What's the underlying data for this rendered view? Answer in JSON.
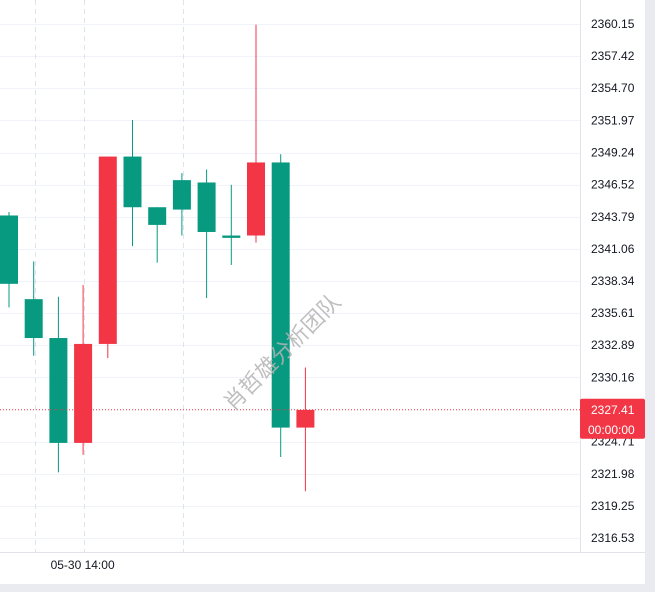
{
  "chart_data": {
    "type": "candlestick",
    "title": "",
    "xlabel": "",
    "ylabel": "",
    "y_ticks": [
      2360.15,
      2357.42,
      2354.7,
      2351.97,
      2349.24,
      2346.52,
      2343.79,
      2341.06,
      2338.34,
      2335.61,
      2332.89,
      2330.16,
      2324.71,
      2321.98,
      2319.25,
      2316.53
    ],
    "y_tick_labels": [
      "2360.15",
      "2357.42",
      "2354.70",
      "2351.97",
      "2349.24",
      "2346.52",
      "2343.79",
      "2341.06",
      "2338.34",
      "2335.61",
      "2332.89",
      "2330.16",
      "2324.71",
      "2321.98",
      "2319.25",
      "2316.53"
    ],
    "ylim": [
      2315.3,
      2362.9
    ],
    "x_tick_labels": [
      {
        "index": 3,
        "label": "05-30 14:00"
      }
    ],
    "candles": [
      {
        "index": 0,
        "open": 2338.1,
        "high": 2344.2,
        "low": 2336.1,
        "close": 2343.9
      },
      {
        "index": 1,
        "open": 2333.5,
        "high": 2340.0,
        "low": 2332.0,
        "close": 2336.8
      },
      {
        "index": 2,
        "open": 2324.6,
        "high": 2337.0,
        "low": 2322.1,
        "close": 2333.5
      },
      {
        "index": 3,
        "open": 2333.0,
        "high": 2338.0,
        "low": 2323.6,
        "close": 2324.6
      },
      {
        "index": 4,
        "open": 2348.9,
        "high": 2348.9,
        "low": 2331.8,
        "close": 2333.0
      },
      {
        "index": 5,
        "open": 2344.6,
        "high": 2352.0,
        "low": 2341.3,
        "close": 2348.9
      },
      {
        "index": 6,
        "open": 2343.1,
        "high": 2344.6,
        "low": 2339.9,
        "close": 2344.6
      },
      {
        "index": 7,
        "open": 2344.4,
        "high": 2347.5,
        "low": 2342.2,
        "close": 2346.9
      },
      {
        "index": 8,
        "open": 2342.5,
        "high": 2347.8,
        "low": 2336.9,
        "close": 2346.7
      },
      {
        "index": 9,
        "open": 2342.0,
        "high": 2346.5,
        "low": 2339.7,
        "close": 2342.2
      },
      {
        "index": 10,
        "open": 2348.4,
        "high": 2360.1,
        "low": 2341.6,
        "close": 2342.2
      },
      {
        "index": 11,
        "open": 2325.9,
        "high": 2349.1,
        "low": 2323.4,
        "close": 2348.4
      },
      {
        "index": 12,
        "open": 2327.4,
        "high": 2331.0,
        "low": 2320.5,
        "close": 2325.9
      }
    ],
    "last_price": {
      "value": 2327.41,
      "label": "2327.41",
      "countdown": "00:00:00"
    },
    "colors": {
      "up": "#089981",
      "down": "#f23645",
      "grid": "#f0f3fa",
      "dashed_grid": "#e0e3eb",
      "axis_text": "#131722"
    },
    "watermark": "肖哲雄分析团队"
  }
}
